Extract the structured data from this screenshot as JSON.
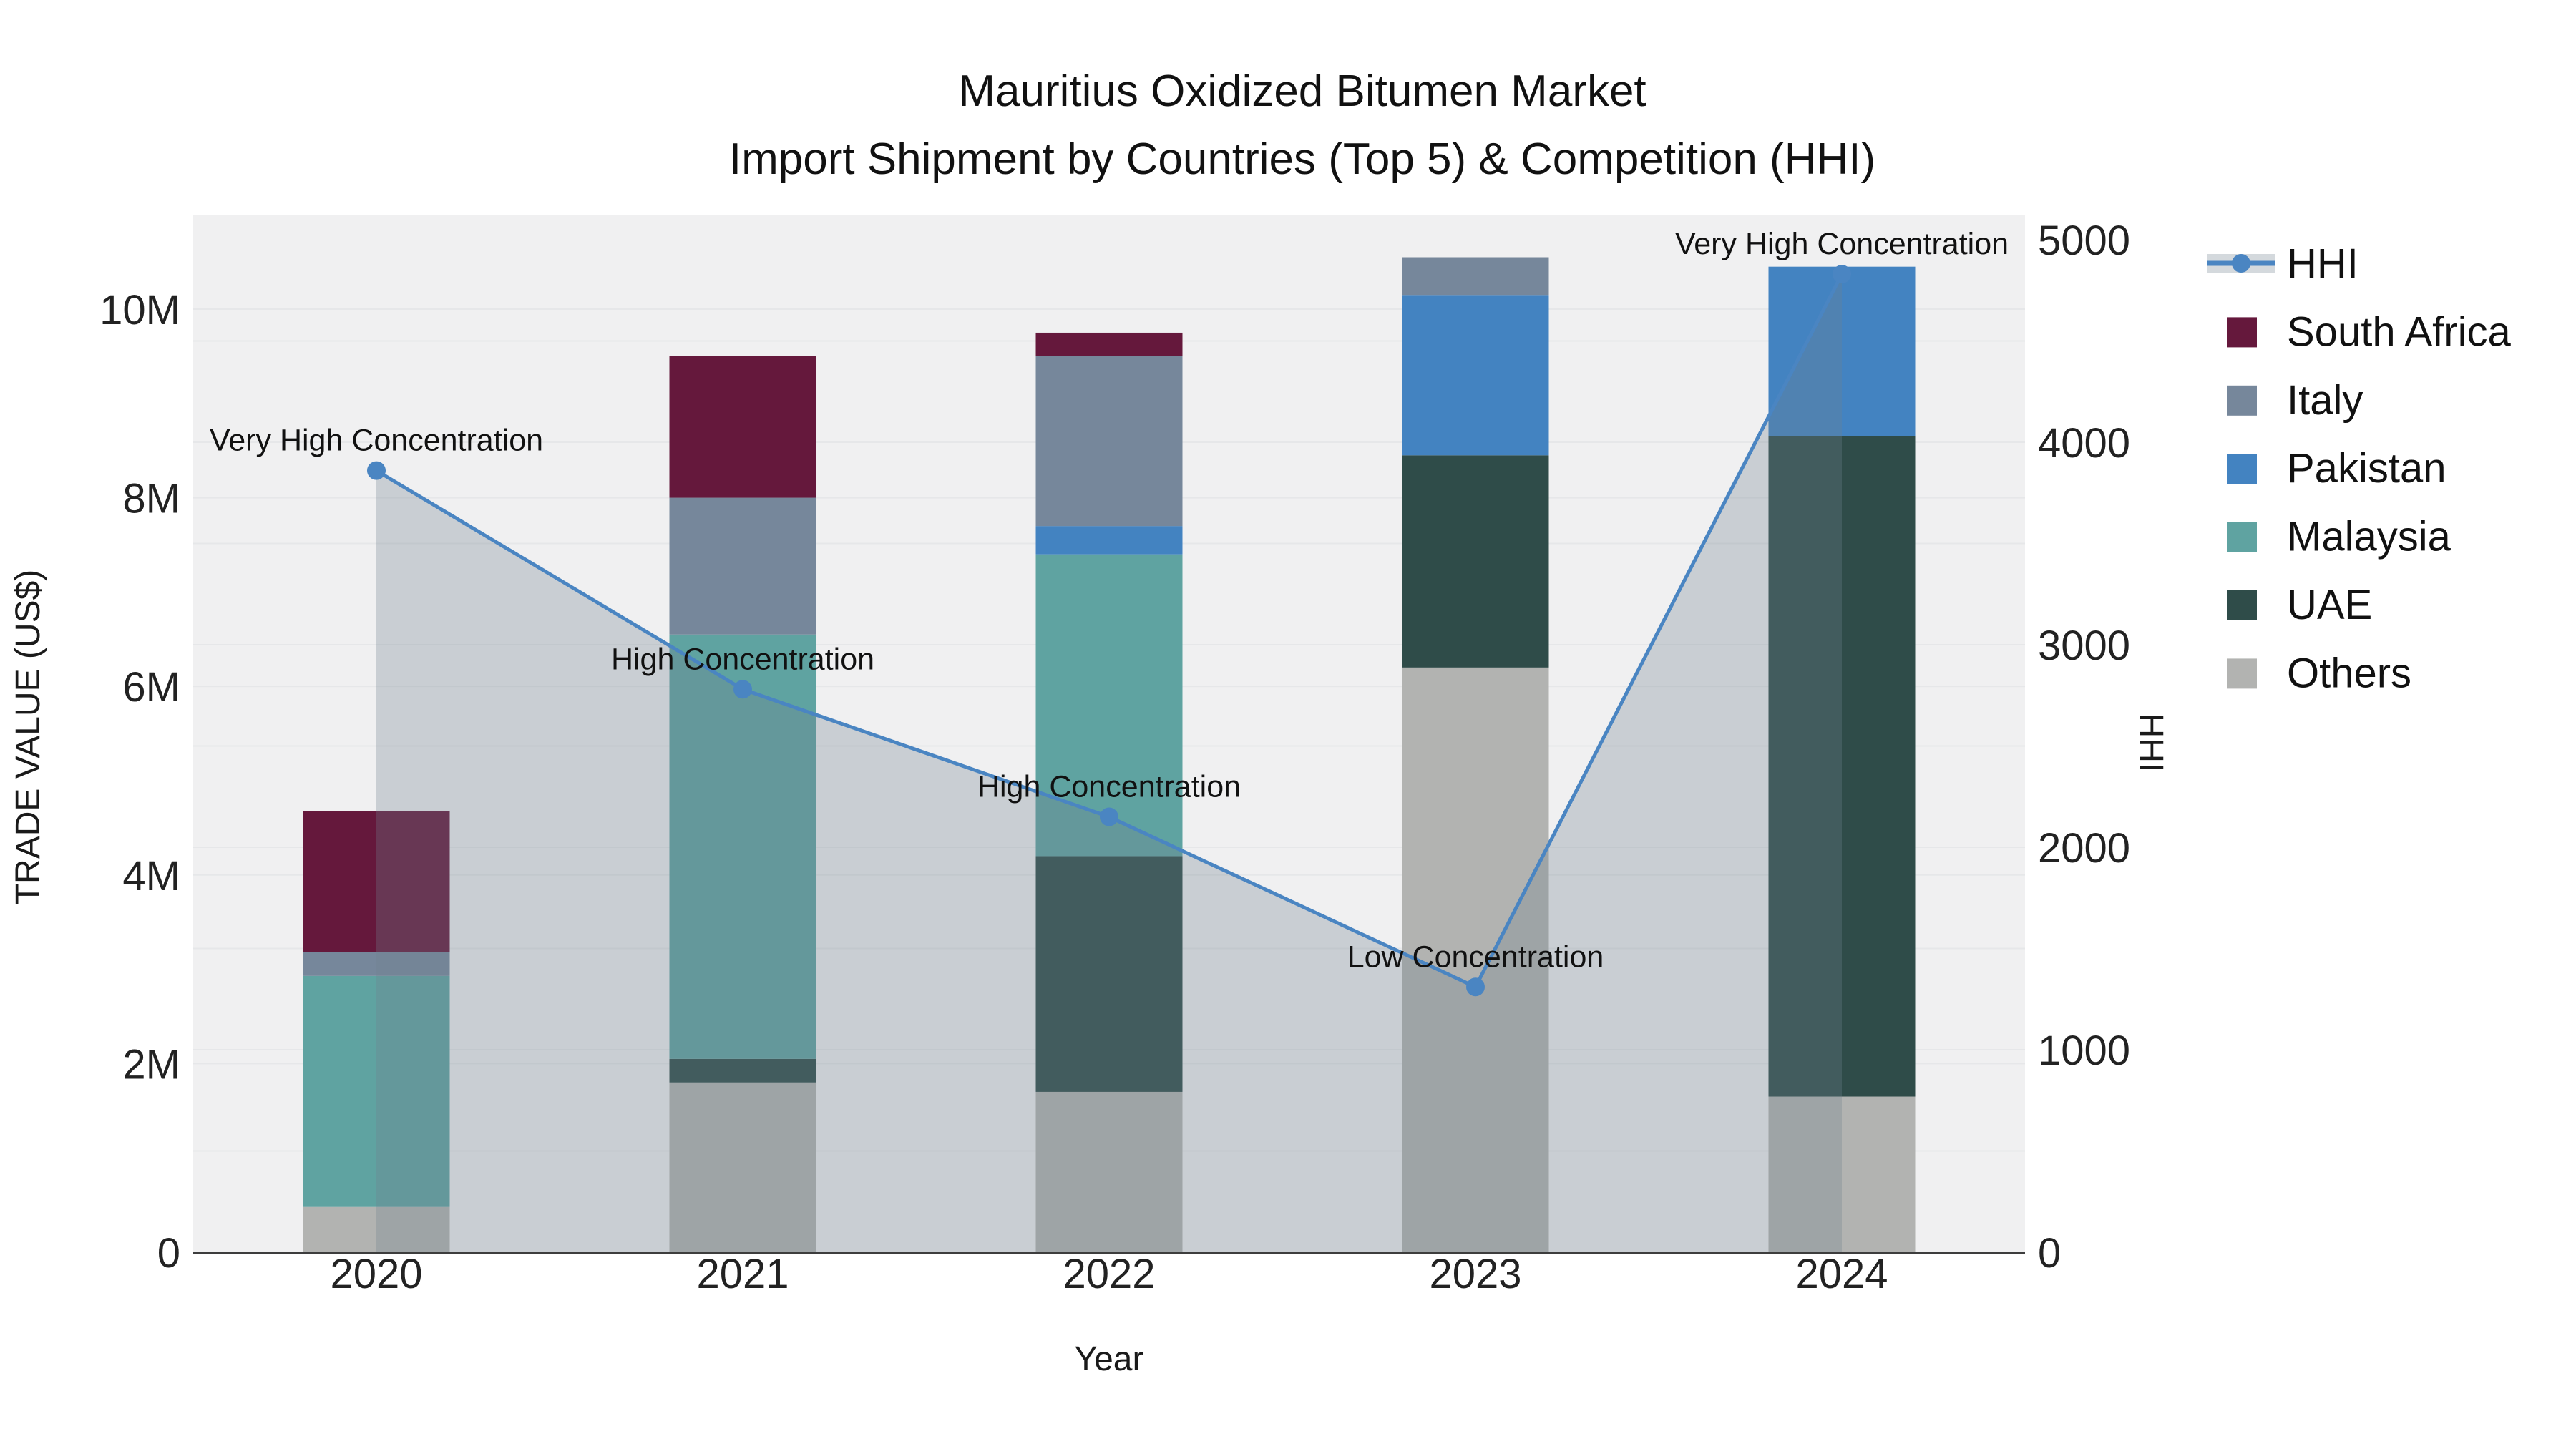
{
  "title": {
    "line1": "Mauritius Oxidized Bitumen Market",
    "line2": "Import Shipment by Countries (Top 5) & Competition (HHI)"
  },
  "chart_data": {
    "type": "combo",
    "sub_types": [
      "stacked-bar",
      "line-area"
    ],
    "x_title": "Year",
    "categories": [
      "2020",
      "2021",
      "2022",
      "2023",
      "2024"
    ],
    "y_left": {
      "title": "TRADE VALUE (US$)",
      "max": 10000000,
      "tick_labels": [
        "0",
        "2M",
        "4M",
        "6M",
        "8M",
        "10M"
      ],
      "tick_values": [
        0,
        2000000,
        4000000,
        6000000,
        8000000,
        10000000
      ]
    },
    "y_right": {
      "title": "HHI",
      "max": 5000,
      "tick_labels": [
        "0",
        "1000",
        "2000",
        "3000",
        "4000",
        "5000"
      ],
      "tick_values": [
        0,
        1000,
        2000,
        3000,
        4000,
        5000
      ],
      "minor_grid_step": 500
    },
    "bar_series_bottom_to_top": [
      {
        "name": "Others",
        "color": "#b2b3b1",
        "values": [
          480000,
          1800000,
          1700000,
          6200000,
          1650000
        ]
      },
      {
        "name": "UAE",
        "color": "#2f4c49",
        "values": [
          0,
          250000,
          2500000,
          2250000,
          7000000
        ]
      },
      {
        "name": "Malaysia",
        "color": "#5fa3a1",
        "values": [
          2450000,
          4500000,
          3200000,
          0,
          0
        ]
      },
      {
        "name": "Pakistan",
        "color": "#4383c1",
        "values": [
          0,
          0,
          300000,
          1700000,
          1800000
        ]
      },
      {
        "name": "Italy",
        "color": "#76879b",
        "values": [
          250000,
          1450000,
          1800000,
          400000,
          0
        ]
      },
      {
        "name": "South Africa",
        "color": "#65183c",
        "values": [
          1500000,
          1500000,
          250000,
          0,
          0
        ]
      }
    ],
    "line_series": {
      "name": "HHI",
      "color": "#4a85c2",
      "area_fill_color": "rgba(112,128,144,0.30)",
      "values": [
        3860,
        2780,
        2150,
        1310,
        4830
      ],
      "annotations": [
        "Very High Concentration",
        "High Concentration",
        "High Concentration",
        "Low Concentration",
        "Very High Concentration"
      ]
    },
    "legend_order": [
      "HHI",
      "South Africa",
      "Italy",
      "Pakistan",
      "Malaysia",
      "UAE",
      "Others"
    ],
    "plot_background": "#f0f0f1",
    "grid_color": "#e6e7e9",
    "zero_line_color": "#3d3d3d"
  }
}
